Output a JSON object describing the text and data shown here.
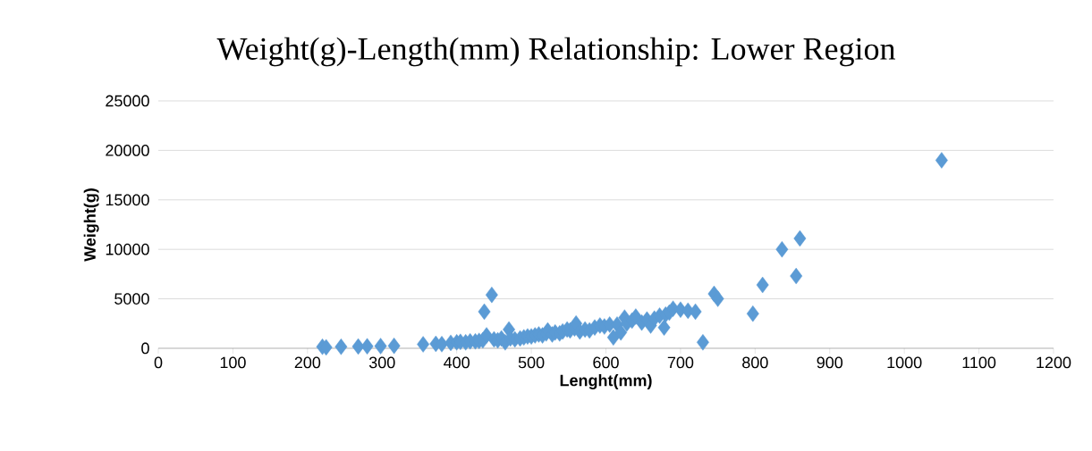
{
  "chart_data": {
    "type": "scatter",
    "title": "Weight(g)-Length(mm) Relationship: Lower Region",
    "xlabel": "Lenght(mm)",
    "ylabel": "Weight(g)",
    "x": [
      220,
      225,
      245,
      268,
      280,
      298,
      316,
      355,
      372,
      380,
      392,
      400,
      405,
      412,
      418,
      425,
      430,
      435,
      437,
      440,
      447,
      450,
      455,
      460,
      465,
      470,
      472,
      478,
      485,
      490,
      495,
      500,
      505,
      510,
      515,
      520,
      522,
      528,
      532,
      538,
      542,
      548,
      552,
      558,
      560,
      565,
      572,
      578,
      585,
      592,
      598,
      605,
      610,
      615,
      620,
      625,
      628,
      635,
      640,
      648,
      655,
      660,
      665,
      672,
      678,
      680,
      685,
      690,
      700,
      710,
      720,
      730,
      745,
      750,
      797,
      810,
      836,
      855,
      860,
      1050
    ],
    "values": [
      150,
      100,
      150,
      180,
      200,
      220,
      250,
      400,
      450,
      420,
      550,
      600,
      650,
      600,
      700,
      700,
      750,
      800,
      3700,
      1300,
      5400,
      900,
      800,
      1000,
      600,
      1900,
      1000,
      900,
      1000,
      1100,
      1200,
      1200,
      1300,
      1400,
      1300,
      1500,
      1800,
      1400,
      1600,
      1500,
      1700,
      1900,
      1800,
      2000,
      2500,
      1700,
      1900,
      1800,
      2100,
      2300,
      2200,
      2400,
      1100,
      2400,
      1600,
      3100,
      2500,
      2800,
      3200,
      2600,
      2900,
      2300,
      3000,
      3300,
      2100,
      3400,
      3600,
      4000,
      3900,
      3800,
      3700,
      600,
      5500,
      5000,
      3500,
      6400,
      10000,
      7300,
      11100,
      19000
    ],
    "color": "#5b9bd5",
    "marker": "diamond",
    "xlim": [
      0,
      1200
    ],
    "xticks": [
      0,
      100,
      200,
      300,
      400,
      500,
      600,
      700,
      800,
      900,
      1000,
      1100,
      1200
    ],
    "ylim": [
      0,
      25000
    ],
    "yticks": [
      0,
      5000,
      10000,
      15000,
      20000,
      25000
    ],
    "grid": "y"
  }
}
